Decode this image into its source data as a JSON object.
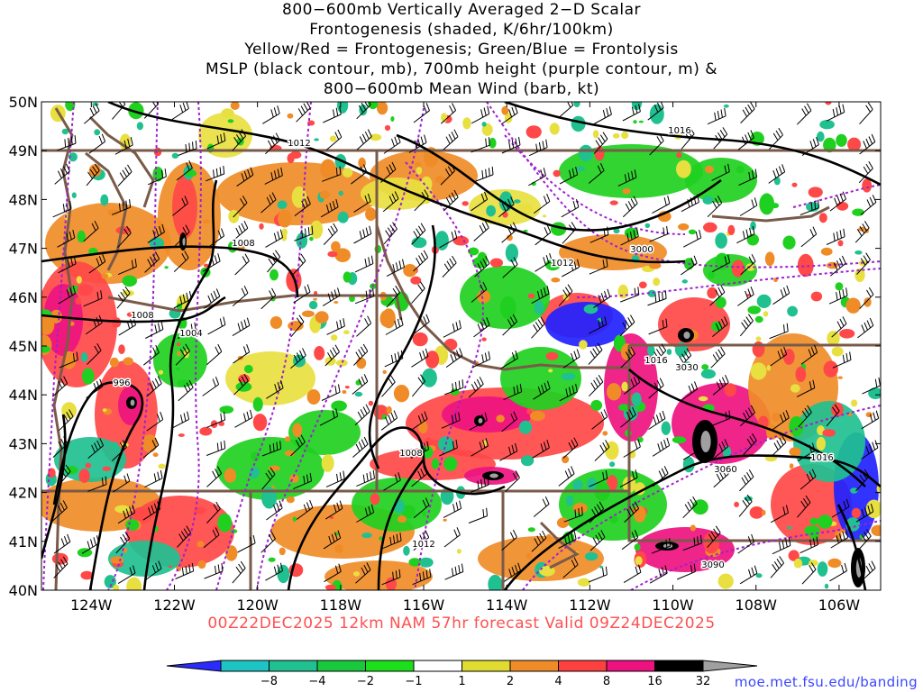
{
  "title_lines": [
    "800−600mb Vertically Averaged 2−D Scalar",
    "Frontogenesis (shaded, K/6hr/100km)",
    "Yellow/Red = Frontogenesis;  Green/Blue = Frontolysis",
    "MSLP (black contour, mb), 700mb height (purple contour, m) &",
    "800−600mb Mean Wind (barb, kt)"
  ],
  "valid_line": "00Z22DEC2025 12km NAM 57hr forecast Valid 09Z24DEC2025",
  "credit": "moe.met.fsu.edu/banding",
  "lat_labels": [
    "50N",
    "49N",
    "48N",
    "47N",
    "46N",
    "45N",
    "44N",
    "43N",
    "42N",
    "41N",
    "40N"
  ],
  "lon_labels": [
    "124W",
    "122W",
    "120W",
    "118W",
    "116W",
    "114W",
    "112W",
    "110W",
    "108W",
    "106W"
  ],
  "colorbar": {
    "labels": [
      "−8",
      "−4",
      "−2",
      "−1",
      "1",
      "2",
      "4",
      "8",
      "16",
      "32"
    ],
    "colors": [
      "#2b2bff",
      "#1ec4c4",
      "#20c090",
      "#19c83c",
      "#1cdf1c",
      "#ffffff",
      "#e0dc30",
      "#f08c28",
      "#ff4040",
      "#ee1280",
      "#000000",
      "#a0a0a0"
    ]
  },
  "mslp_labels": [
    "1012",
    "1016",
    "1008",
    "1012",
    "1008",
    "1004",
    "996",
    "1016",
    "1008",
    "1012",
    "1016"
  ],
  "height_labels": [
    "3000",
    "3030",
    "3060",
    "3090"
  ],
  "colors": {
    "mslp": "#000000",
    "height": "#a020d0",
    "borders": "#7a5a48",
    "frontogenesis_low": "#e8e040",
    "frontogenesis_mid": "#f08c28",
    "frontogenesis_high": "#ff4848",
    "frontogenesis_max": "#ee1280",
    "frontolysis_low": "#20d020",
    "frontolysis_mid": "#20c090",
    "frontolysis_high": "#2222ff"
  }
}
